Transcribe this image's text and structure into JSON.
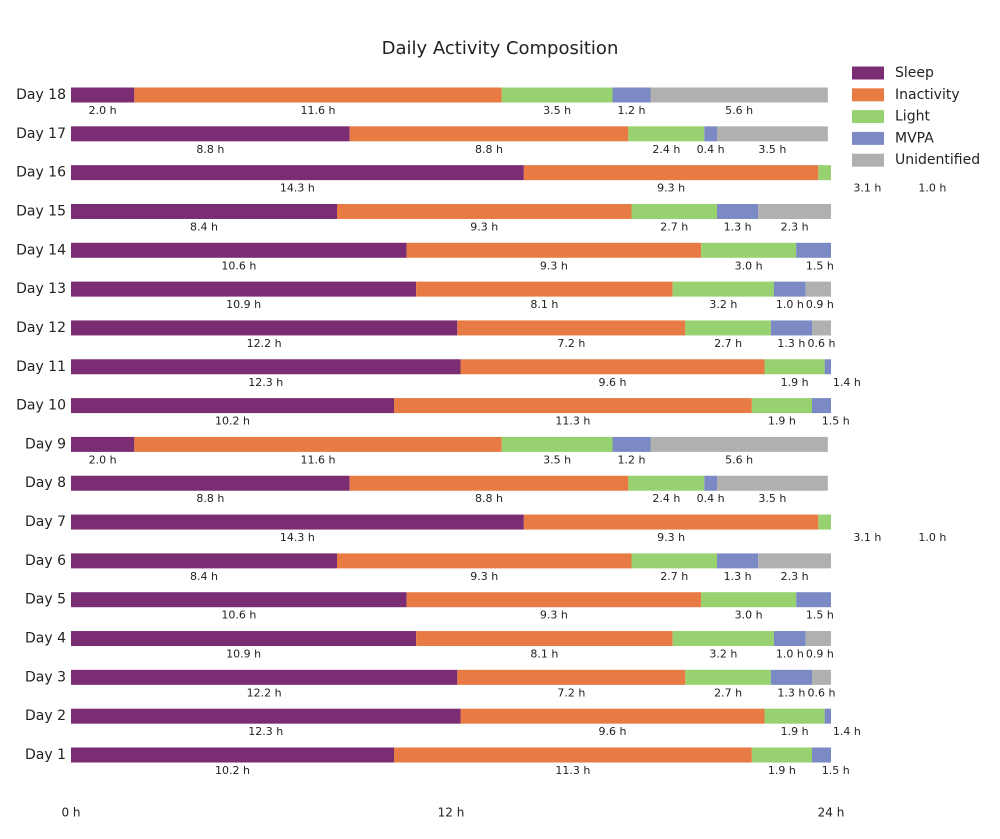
{
  "chart_data": {
    "type": "stacked-barh",
    "title": "Daily Activity Composition",
    "categories": [
      "Day 1",
      "Day 2",
      "Day 3",
      "Day 4",
      "Day 5",
      "Day 6",
      "Day 7",
      "Day 8",
      "Day 9",
      "Day 10",
      "Day 11",
      "Day 12",
      "Day 13",
      "Day 14",
      "Day 15",
      "Day 16",
      "Day 17",
      "Day 18"
    ],
    "series": [
      {
        "name": "Sleep",
        "color": "#7b2d74",
        "values": [
          10.2,
          12.3,
          12.2,
          10.9,
          10.6,
          8.4,
          14.3,
          8.8,
          2.0,
          10.2,
          12.3,
          12.2,
          10.9,
          10.6,
          8.4,
          14.3,
          8.8,
          2.0
        ],
        "value_labels": [
          "10.2 h",
          "12.3 h",
          "12.2 h",
          "10.9 h",
          "10.6 h",
          "8.4 h",
          "14.3 h",
          "8.8 h",
          "2.0 h",
          "10.2 h",
          "12.3 h",
          "12.2 h",
          "10.9 h",
          "10.6 h",
          "8.4 h",
          "14.3 h",
          "8.8 h",
          "2.0 h"
        ]
      },
      {
        "name": "Inactivity",
        "color": "#e87b43",
        "values": [
          11.3,
          9.6,
          7.2,
          8.1,
          9.3,
          9.3,
          9.3,
          8.8,
          11.6,
          11.3,
          9.6,
          7.2,
          8.1,
          9.3,
          9.3,
          9.3,
          8.8,
          11.6
        ],
        "value_labels": [
          "11.3 h",
          "9.6 h",
          "7.2 h",
          "8.1 h",
          "9.3 h",
          "9.3 h",
          "9.3 h",
          "8.8 h",
          "11.6 h",
          "11.3 h",
          "9.6 h",
          "7.2 h",
          "8.1 h",
          "9.3 h",
          "9.3 h",
          "9.3 h",
          "8.8 h",
          "11.6 h"
        ]
      },
      {
        "name": "Light",
        "color": "#98d270",
        "values": [
          1.9,
          1.9,
          2.7,
          3.2,
          3.0,
          2.7,
          3.1,
          2.4,
          3.5,
          1.9,
          1.9,
          2.7,
          3.2,
          3.0,
          2.7,
          3.1,
          2.4,
          3.5
        ],
        "value_labels": [
          "1.9 h",
          "1.9 h",
          "2.7 h",
          "3.2 h",
          "3.0 h",
          "2.7 h",
          "3.1 h",
          "2.4 h",
          "3.5 h",
          "1.9 h",
          "1.9 h",
          "2.7 h",
          "3.2 h",
          "3.0 h",
          "2.7 h",
          "3.1 h",
          "2.4 h",
          "3.5 h"
        ]
      },
      {
        "name": "MVPA",
        "color": "#7b8ac4",
        "values": [
          1.5,
          1.4,
          1.3,
          1.0,
          1.5,
          1.3,
          1.0,
          0.4,
          1.2,
          1.5,
          1.4,
          1.3,
          1.0,
          1.5,
          1.3,
          1.0,
          0.4,
          1.2
        ],
        "value_labels": [
          "1.5 h",
          "1.4 h",
          "1.3 h",
          "1.0 h",
          "1.5 h",
          "1.3 h",
          "1.0 h",
          "0.4 h",
          "1.2 h",
          "1.5 h",
          "1.4 h",
          "1.3 h",
          "1.0 h",
          "1.5 h",
          "1.3 h",
          "1.0 h",
          "0.4 h",
          "1.2 h"
        ]
      },
      {
        "name": "Unidentified",
        "color": "#b0b0b0",
        "values": [
          null,
          null,
          0.6,
          0.9,
          null,
          2.3,
          null,
          3.5,
          5.6,
          null,
          null,
          0.6,
          0.9,
          null,
          2.3,
          null,
          3.5,
          5.6
        ],
        "value_labels": [
          null,
          null,
          "0.6 h",
          "0.9 h",
          null,
          "2.3 h",
          null,
          "3.5 h",
          "5.6 h",
          null,
          null,
          "0.6 h",
          "0.9 h",
          null,
          "2.3 h",
          null,
          "3.5 h",
          "5.6 h"
        ]
      }
    ],
    "xlim": [
      0,
      24
    ],
    "xticks": [
      {
        "value": 0,
        "label": "0 h"
      },
      {
        "value": 12,
        "label": "12 h"
      },
      {
        "value": 24,
        "label": "24 h"
      }
    ],
    "legend": "upper right"
  }
}
